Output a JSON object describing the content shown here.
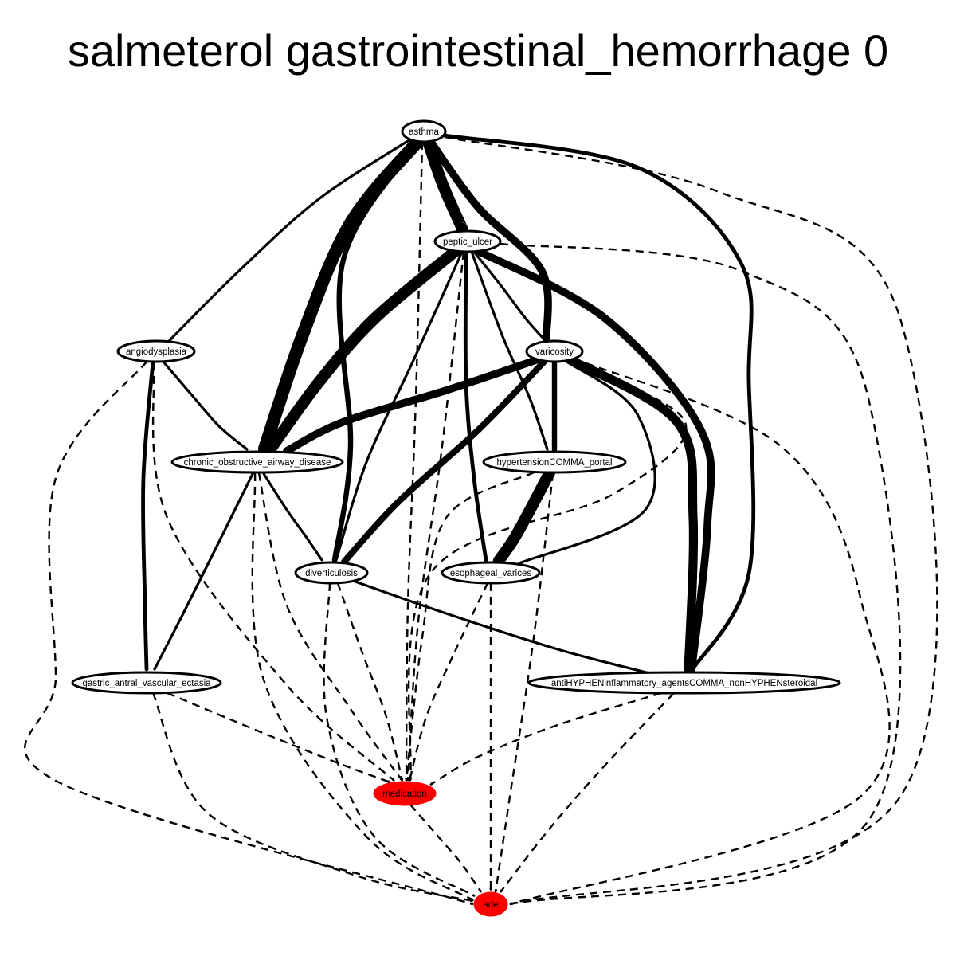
{
  "title": "salmeterol gastrointestinal_hemorrhage 0",
  "colors": {
    "highlight": "#ff0000",
    "node_fill": "#ffffff",
    "stroke": "#000000"
  },
  "nodes": [
    {
      "id": "asthma",
      "label": "asthma",
      "highlight": false
    },
    {
      "id": "peptic_ulcer",
      "label": "peptic_ulcer",
      "highlight": false
    },
    {
      "id": "angiodysplasia",
      "label": "angiodysplasia",
      "highlight": false
    },
    {
      "id": "varicosity",
      "label": "varicosity",
      "highlight": false
    },
    {
      "id": "chronic_obstructive_airway_disease",
      "label": "chronic_obstructive_airway_disease",
      "highlight": false
    },
    {
      "id": "hypertensionCOMMA_portal",
      "label": "hypertensionCOMMA_portal",
      "highlight": false
    },
    {
      "id": "diverticulosis",
      "label": "diverticulosis",
      "highlight": false
    },
    {
      "id": "esophageal_varices",
      "label": "esophageal_varices",
      "highlight": false
    },
    {
      "id": "gastric_antral_vascular_ectasia",
      "label": "gastric_antral_vascular_ectasia",
      "highlight": false
    },
    {
      "id": "antiHYPHENinflammatory_agentsCOMMA_nonHYPHENsteroidal",
      "label": "antiHYPHENinflammatory_agentsCOMMA_nonHYPHENsteroidal",
      "highlight": false
    },
    {
      "id": "medication",
      "label": "medication",
      "highlight": true
    },
    {
      "id": "ade",
      "label": "ade",
      "highlight": true
    }
  ],
  "edges": [
    {
      "from": "asthma",
      "to": "peptic_ulcer",
      "style": "solid",
      "weight": 9
    },
    {
      "from": "asthma",
      "to": "angiodysplasia",
      "style": "solid",
      "weight": 2
    },
    {
      "from": "asthma",
      "to": "chronic_obstructive_airway_disease",
      "style": "solid",
      "weight": 10
    },
    {
      "from": "asthma",
      "to": "diverticulosis",
      "style": "solid",
      "weight": 4
    },
    {
      "from": "asthma",
      "to": "varicosity",
      "style": "solid",
      "weight": 6
    },
    {
      "from": "asthma",
      "to": "antiHYPHENinflammatory_agentsCOMMA_nonHYPHENsteroidal",
      "style": "solid",
      "weight": 3
    },
    {
      "from": "asthma",
      "to": "medication",
      "style": "dashed",
      "weight": 1
    },
    {
      "from": "asthma",
      "to": "ade",
      "style": "dashed",
      "weight": 1
    },
    {
      "from": "peptic_ulcer",
      "to": "chronic_obstructive_airway_disease",
      "style": "solid",
      "weight": 9
    },
    {
      "from": "peptic_ulcer",
      "to": "diverticulosis",
      "style": "solid",
      "weight": 2
    },
    {
      "from": "peptic_ulcer",
      "to": "varicosity",
      "style": "solid",
      "weight": 2
    },
    {
      "from": "peptic_ulcer",
      "to": "hypertensionCOMMA_portal",
      "style": "solid",
      "weight": 2
    },
    {
      "from": "peptic_ulcer",
      "to": "esophageal_varices",
      "style": "solid",
      "weight": 3
    },
    {
      "from": "peptic_ulcer",
      "to": "antiHYPHENinflammatory_agentsCOMMA_nonHYPHENsteroidal",
      "style": "solid",
      "weight": 6
    },
    {
      "from": "peptic_ulcer",
      "to": "medication",
      "style": "dashed",
      "weight": 1
    },
    {
      "from": "peptic_ulcer",
      "to": "ade",
      "style": "dashed",
      "weight": 1
    },
    {
      "from": "angiodysplasia",
      "to": "chronic_obstructive_airway_disease",
      "style": "solid",
      "weight": 2
    },
    {
      "from": "angiodysplasia",
      "to": "gastric_antral_vascular_ectasia",
      "style": "solid",
      "weight": 3
    },
    {
      "from": "angiodysplasia",
      "to": "medication",
      "style": "dashed",
      "weight": 1
    },
    {
      "from": "angiodysplasia",
      "to": "ade",
      "style": "dashed",
      "weight": 1
    },
    {
      "from": "varicosity",
      "to": "chronic_obstructive_airway_disease",
      "style": "solid",
      "weight": 6
    },
    {
      "from": "varicosity",
      "to": "diverticulosis",
      "style": "solid",
      "weight": 5
    },
    {
      "from": "varicosity",
      "to": "hypertensionCOMMA_portal",
      "style": "solid",
      "weight": 4
    },
    {
      "from": "varicosity",
      "to": "esophageal_varices",
      "style": "solid",
      "weight": 2
    },
    {
      "from": "varicosity",
      "to": "antiHYPHENinflammatory_agentsCOMMA_nonHYPHENsteroidal",
      "style": "solid",
      "weight": 7
    },
    {
      "from": "varicosity",
      "to": "medication",
      "style": "dashed",
      "weight": 1
    },
    {
      "from": "varicosity",
      "to": "ade",
      "style": "dashed",
      "weight": 1
    },
    {
      "from": "chronic_obstructive_airway_disease",
      "to": "diverticulosis",
      "style": "solid",
      "weight": 2
    },
    {
      "from": "chronic_obstructive_airway_disease",
      "to": "gastric_antral_vascular_ectasia",
      "style": "solid",
      "weight": 2
    },
    {
      "from": "chronic_obstructive_airway_disease",
      "to": "medication",
      "style": "dashed",
      "weight": 1
    },
    {
      "from": "chronic_obstructive_airway_disease",
      "to": "ade",
      "style": "dashed",
      "weight": 1
    },
    {
      "from": "hypertensionCOMMA_portal",
      "to": "esophageal_varices",
      "style": "solid",
      "weight": 9
    },
    {
      "from": "hypertensionCOMMA_portal",
      "to": "medication",
      "style": "dashed",
      "weight": 1
    },
    {
      "from": "hypertensionCOMMA_portal",
      "to": "ade",
      "style": "dashed",
      "weight": 1
    },
    {
      "from": "diverticulosis",
      "to": "antiHYPHENinflammatory_agentsCOMMA_nonHYPHENsteroidal",
      "style": "solid",
      "weight": 2
    },
    {
      "from": "diverticulosis",
      "to": "medication",
      "style": "dashed",
      "weight": 1
    },
    {
      "from": "diverticulosis",
      "to": "ade",
      "style": "dashed",
      "weight": 1
    },
    {
      "from": "esophageal_varices",
      "to": "medication",
      "style": "dashed",
      "weight": 1
    },
    {
      "from": "esophageal_varices",
      "to": "ade",
      "style": "dashed",
      "weight": 1
    },
    {
      "from": "gastric_antral_vascular_ectasia",
      "to": "medication",
      "style": "dashed",
      "weight": 1
    },
    {
      "from": "gastric_antral_vascular_ectasia",
      "to": "ade",
      "style": "dashed",
      "weight": 1
    },
    {
      "from": "antiHYPHENinflammatory_agentsCOMMA_nonHYPHENsteroidal",
      "to": "medication",
      "style": "dashed",
      "weight": 1
    },
    {
      "from": "antiHYPHENinflammatory_agentsCOMMA_nonHYPHENsteroidal",
      "to": "ade",
      "style": "dashed",
      "weight": 1
    },
    {
      "from": "medication",
      "to": "ade",
      "style": "dashed",
      "weight": 1
    }
  ]
}
